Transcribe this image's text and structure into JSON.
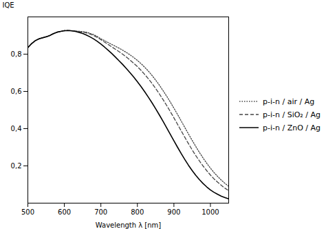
{
  "chart_data": {
    "type": "line",
    "xlabel": "Wavelength λ [nm]",
    "ylabel": "IQE",
    "xlim": [
      500,
      1050
    ],
    "ylim": [
      0.0,
      1.0
    ],
    "xticks": [
      500,
      600,
      700,
      800,
      900,
      1000
    ],
    "yticks": [
      {
        "value": 0.2,
        "label": "0,2"
      },
      {
        "value": 0.4,
        "label": "0,4"
      },
      {
        "value": 0.6,
        "label": "0,6"
      },
      {
        "value": 0.8,
        "label": "0,8"
      }
    ],
    "legend": "right",
    "x": [
      500,
      510,
      520,
      530,
      540,
      550,
      560,
      570,
      580,
      590,
      600,
      610,
      620,
      630,
      640,
      650,
      660,
      670,
      680,
      690,
      700,
      710,
      720,
      730,
      740,
      750,
      760,
      770,
      780,
      790,
      800,
      810,
      820,
      830,
      840,
      850,
      860,
      870,
      880,
      890,
      900,
      910,
      920,
      930,
      940,
      950,
      960,
      970,
      980,
      990,
      1000,
      1010,
      1020,
      1030,
      1040,
      1050
    ],
    "series": [
      {
        "name": "p-i-n / air / Ag",
        "color": "#444444",
        "line_style": "dotted",
        "values": [
          0.835,
          0.856,
          0.872,
          0.882,
          0.888,
          0.893,
          0.9,
          0.91,
          0.918,
          0.922,
          0.926,
          0.927,
          0.926,
          0.924,
          0.923,
          0.921,
          0.918,
          0.912,
          0.905,
          0.895,
          0.882,
          0.873,
          0.862,
          0.852,
          0.842,
          0.832,
          0.821,
          0.809,
          0.796,
          0.782,
          0.766,
          0.749,
          0.73,
          0.709,
          0.686,
          0.661,
          0.634,
          0.605,
          0.575,
          0.543,
          0.51,
          0.476,
          0.441,
          0.406,
          0.371,
          0.337,
          0.304,
          0.272,
          0.242,
          0.214,
          0.188,
          0.164,
          0.143,
          0.123,
          0.106,
          0.09
        ]
      },
      {
        "name": "p-i-n / SiO₂ / Ag",
        "color": "#444444",
        "line_style": "dashed",
        "values": [
          0.835,
          0.856,
          0.872,
          0.881,
          0.887,
          0.893,
          0.9,
          0.91,
          0.918,
          0.922,
          0.926,
          0.927,
          0.926,
          0.924,
          0.921,
          0.918,
          0.914,
          0.908,
          0.9,
          0.89,
          0.878,
          0.865,
          0.852,
          0.839,
          0.826,
          0.813,
          0.799,
          0.784,
          0.768,
          0.751,
          0.733,
          0.713,
          0.691,
          0.668,
          0.643,
          0.616,
          0.587,
          0.557,
          0.525,
          0.492,
          0.458,
          0.423,
          0.388,
          0.353,
          0.319,
          0.286,
          0.255,
          0.226,
          0.199,
          0.174,
          0.151,
          0.13,
          0.112,
          0.095,
          0.08,
          0.067
        ]
      },
      {
        "name": "p-i-n / ZnO / Ag",
        "color": "#000000",
        "line_style": "solid",
        "values": [
          0.835,
          0.856,
          0.872,
          0.882,
          0.888,
          0.893,
          0.9,
          0.91,
          0.918,
          0.922,
          0.926,
          0.927,
          0.925,
          0.922,
          0.917,
          0.911,
          0.903,
          0.893,
          0.882,
          0.869,
          0.854,
          0.838,
          0.821,
          0.803,
          0.784,
          0.764,
          0.744,
          0.722,
          0.7,
          0.677,
          0.652,
          0.626,
          0.598,
          0.569,
          0.539,
          0.507,
          0.474,
          0.44,
          0.405,
          0.37,
          0.335,
          0.3,
          0.266,
          0.234,
          0.203,
          0.175,
          0.149,
          0.126,
          0.105,
          0.087,
          0.071,
          0.058,
          0.047,
          0.037,
          0.03,
          0.023
        ]
      }
    ]
  }
}
